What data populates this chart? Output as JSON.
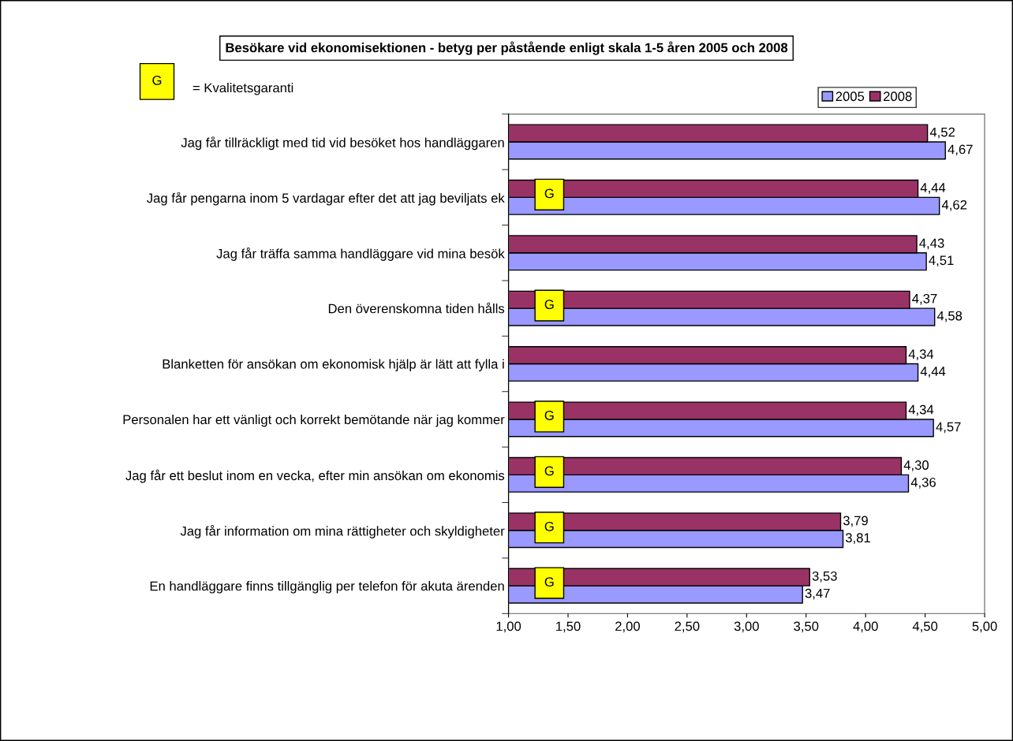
{
  "chart_data": {
    "type": "bar",
    "orientation": "horizontal",
    "title": "Besökare vid ekonomisektionen - betyg per påstående enligt skala 1-5 åren 2005 och 2008",
    "categories": [
      "Jag får tillräckligt med tid vid besöket hos handläggaren",
      "Jag får pengarna inom 5 vardagar efter det att jag beviljats ek",
      "Jag får träffa samma handläggare vid mina besök",
      "Den överenskomna tiden hålls",
      "Blanketten för ansökan om ekonomisk hjälp är lätt att fylla i",
      "Personalen har ett vänligt och korrekt bemötande när jag kommer",
      "Jag får ett beslut inom en vecka, efter min ansökan om ekonomis",
      "Jag får information om mina rättigheter och skyldigheter",
      "En handläggare finns tillgänglig per telefon för akuta ärenden"
    ],
    "series": [
      {
        "name": "2005",
        "color": "#9999ff",
        "values": [
          4.67,
          4.62,
          4.51,
          4.58,
          4.44,
          4.57,
          4.36,
          3.81,
          3.47
        ],
        "value_labels": [
          "4,67",
          "4,62",
          "4,51",
          "4,58",
          "4,44",
          "4,57",
          "4,36",
          "3,81",
          "3,47"
        ]
      },
      {
        "name": "2008",
        "color": "#993366",
        "values": [
          4.52,
          4.44,
          4.43,
          4.37,
          4.34,
          4.34,
          4.3,
          3.79,
          3.53
        ],
        "value_labels": [
          "4,52",
          "4,44",
          "4,43",
          "4,37",
          "4,34",
          "4,34",
          "4,30",
          "3,79",
          "3,53"
        ]
      }
    ],
    "xlim": [
      1,
      5
    ],
    "xticks": [
      {
        "value": 1,
        "label": "1,00"
      },
      {
        "value": 1.5,
        "label": "1,50"
      },
      {
        "value": 2,
        "label": "2,00"
      },
      {
        "value": 2.5,
        "label": "2,50"
      },
      {
        "value": 3,
        "label": "3,00"
      },
      {
        "value": 3.5,
        "label": "3,50"
      },
      {
        "value": 4,
        "label": "4,00"
      },
      {
        "value": 4.5,
        "label": "4,50"
      },
      {
        "value": 5,
        "label": "5,00"
      }
    ],
    "legend": "top right",
    "grid": false,
    "annotations": [
      "G",
      "= Kvalitetsgaranti",
      {
        "text": "G",
        "y": "Jag får pengarna inom 5 vardagar efter det att jag beviljats ek"
      },
      {
        "text": "G",
        "y": "Den överenskomna tiden hålls"
      },
      {
        "text": "G",
        "y": "Personalen har ett vänligt och korrekt bemötande när jag kommer"
      },
      {
        "text": "G",
        "y": "Jag får ett beslut inom en vecka, efter min ansökan om ekonomis"
      },
      {
        "text": "G",
        "y": "Jag får information om mina rättigheter och skyldigheter"
      },
      {
        "text": "G",
        "y": "En handläggare finns tillgänglig per telefon för akuta ärenden"
      }
    ]
  }
}
